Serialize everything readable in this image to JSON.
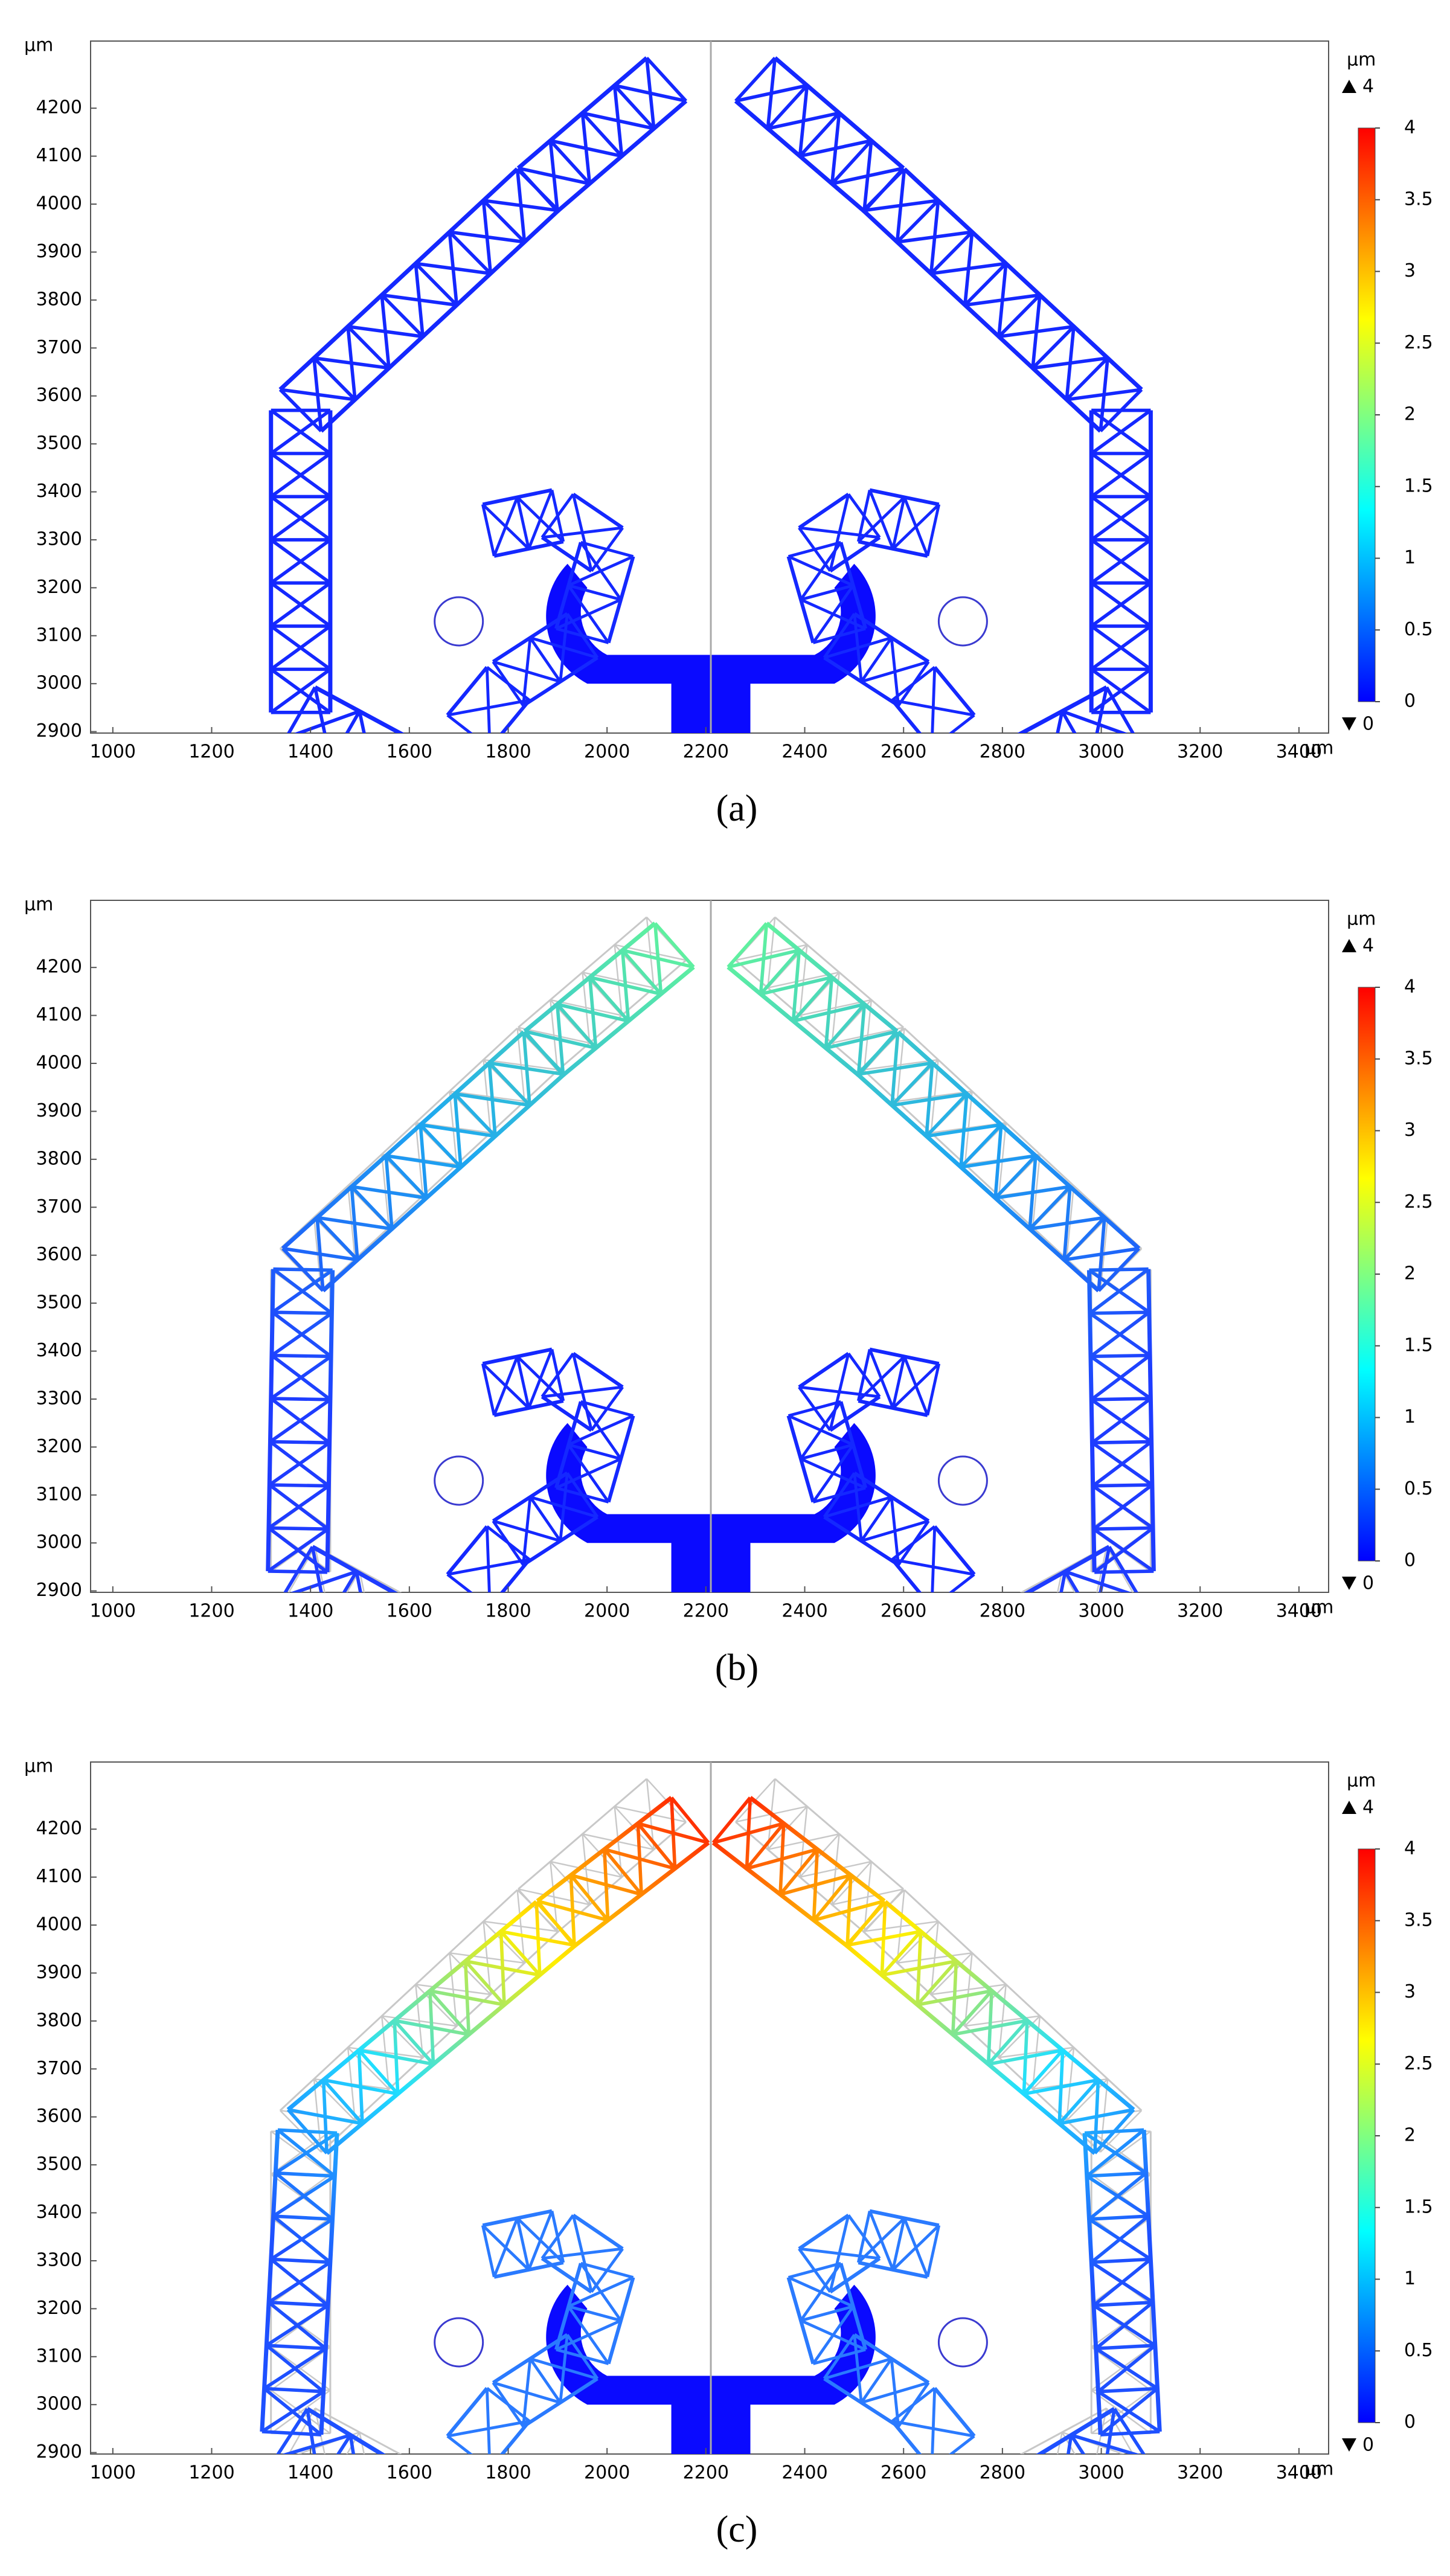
{
  "chart_data": [
    {
      "type": "surface",
      "caption": "(a)",
      "xlabel": "μm",
      "ylabel": "μm",
      "xlim": [
        955,
        3460
      ],
      "ylim": [
        2897,
        4340
      ],
      "xticks": [
        1000,
        1200,
        1400,
        1600,
        1800,
        2000,
        2200,
        2400,
        2600,
        2800,
        3000,
        3200,
        3400
      ],
      "yticks": [
        2900,
        3000,
        3100,
        3200,
        3300,
        3400,
        3500,
        3600,
        3700,
        3800,
        3900,
        4000,
        4100,
        4200
      ],
      "colorbar": {
        "label": "μm",
        "lim": [
          0,
          4
        ],
        "ticks": [
          0,
          0.5,
          1,
          1.5,
          2,
          2.5,
          3,
          3.5,
          4
        ],
        "max": 4,
        "min": 0,
        "colors": [
          "#0000ff",
          "#0080ff",
          "#00ffff",
          "#80ff80",
          "#ffff00",
          "#ff8000",
          "#ff0000"
        ]
      }
    },
    {
      "type": "surface",
      "caption": "(b)",
      "xlabel": "μm",
      "ylabel": "μm",
      "xlim": [
        955,
        3460
      ],
      "ylim": [
        2897,
        4340
      ],
      "xticks": [
        1000,
        1200,
        1400,
        1600,
        1800,
        2000,
        2200,
        2400,
        2600,
        2800,
        3000,
        3200,
        3400
      ],
      "yticks": [
        2900,
        3000,
        3100,
        3200,
        3300,
        3400,
        3500,
        3600,
        3700,
        3800,
        3900,
        4000,
        4100,
        4200
      ],
      "colorbar": {
        "label": "μm",
        "lim": [
          0,
          4
        ],
        "ticks": [
          0,
          0.5,
          1,
          1.5,
          2,
          2.5,
          3,
          3.5,
          4
        ],
        "max": 4,
        "min": 0,
        "colors": [
          "#0000ff",
          "#0080ff",
          "#00ffff",
          "#80ff80",
          "#ffff00",
          "#ff8000",
          "#ff0000"
        ]
      }
    },
    {
      "type": "surface",
      "caption": "(c)",
      "xlabel": "μm",
      "ylabel": "μm",
      "xlim": [
        955,
        3460
      ],
      "ylim": [
        2897,
        4340
      ],
      "xticks": [
        1000,
        1200,
        1400,
        1600,
        1800,
        2000,
        2200,
        2400,
        2600,
        2800,
        3000,
        3200,
        3400
      ],
      "yticks": [
        2900,
        3000,
        3100,
        3200,
        3300,
        3400,
        3500,
        3600,
        3700,
        3800,
        3900,
        4000,
        4100,
        4200
      ],
      "colorbar": {
        "label": "μm",
        "lim": [
          0,
          4
        ],
        "ticks": [
          0,
          0.5,
          1,
          1.5,
          2,
          2.5,
          3,
          3.5,
          4
        ],
        "max": 4,
        "min": 0,
        "colors": [
          "#0000ff",
          "#0080ff",
          "#00ffff",
          "#80ff80",
          "#ffff00",
          "#ff8000",
          "#ff0000"
        ]
      }
    }
  ]
}
